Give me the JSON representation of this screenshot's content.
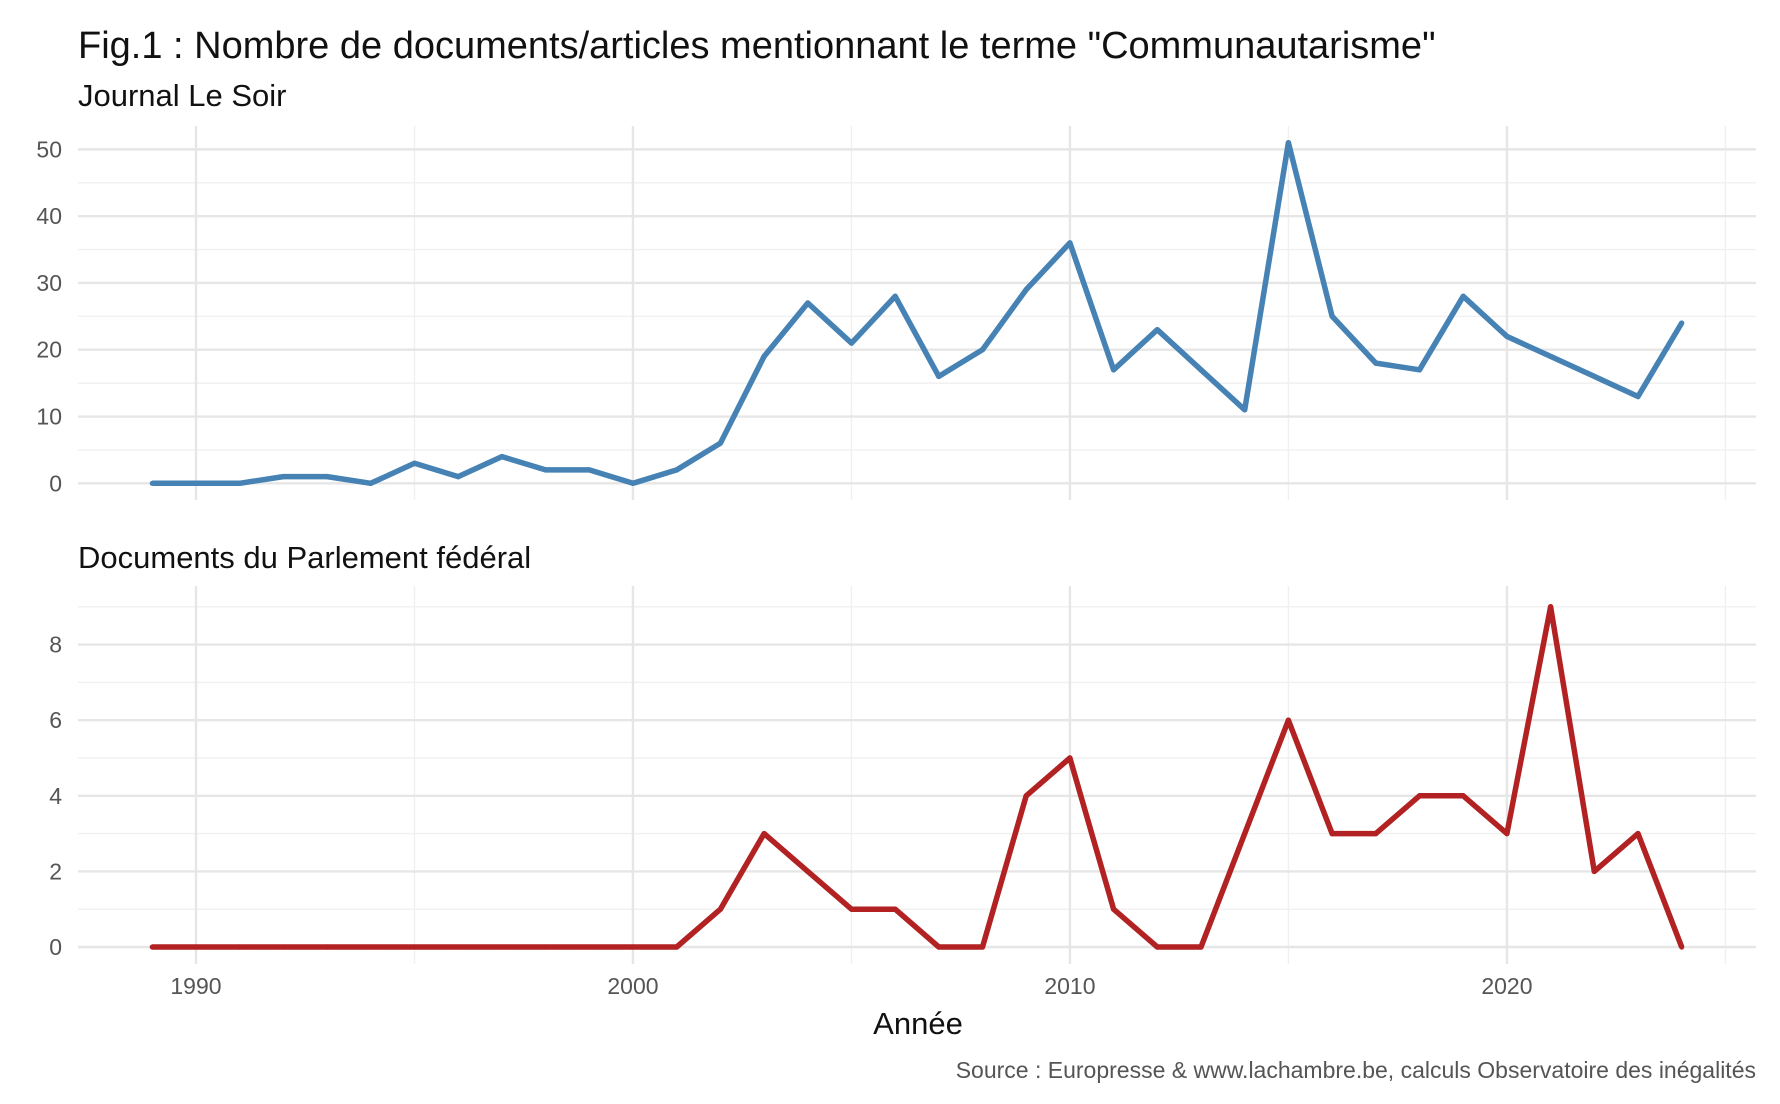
{
  "chart_data": {
    "type": "line",
    "title": "Fig.1 : Nombre de documents/articles mentionnant le terme \"Communautarisme\"",
    "xlabel": "Année",
    "caption": "Source : Europresse & www.lachambre.be, calculs Observatoire des inégalités",
    "x": [
      1989,
      1990,
      1991,
      1992,
      1993,
      1994,
      1995,
      1996,
      1997,
      1998,
      1999,
      2000,
      2001,
      2002,
      2003,
      2004,
      2005,
      2006,
      2007,
      2008,
      2009,
      2010,
      2011,
      2012,
      2013,
      2014,
      2015,
      2016,
      2017,
      2018,
      2019,
      2020,
      2021,
      2022,
      2023,
      2024
    ],
    "xlim": [
      1987.3,
      2025.7
    ],
    "xticks": [
      1990,
      2000,
      2010,
      2020
    ],
    "xtick_labels": [
      "1990",
      "2000",
      "2010",
      "2020"
    ],
    "grid": true,
    "panels": [
      {
        "title": "Journal Le Soir",
        "color": "#4682B4",
        "ylim": [
          -2.5,
          53.5
        ],
        "yticks": [
          0,
          10,
          20,
          30,
          40,
          50
        ],
        "ytick_labels": [
          "0",
          "10",
          "20",
          "30",
          "40",
          "50"
        ],
        "values": [
          0,
          0,
          0,
          1,
          1,
          0,
          3,
          1,
          4,
          2,
          2,
          0,
          2,
          6,
          19,
          27,
          21,
          28,
          16,
          20,
          29,
          36,
          17,
          23,
          17,
          11,
          51,
          25,
          18,
          17,
          28,
          22,
          19,
          16,
          13,
          24
        ]
      },
      {
        "title": "Documents du Parlement fédéral",
        "color": "#B22222",
        "ylim": [
          -0.45,
          9.55
        ],
        "yticks": [
          0,
          2,
          4,
          6,
          8
        ],
        "ytick_labels": [
          "0",
          "2",
          "4",
          "6",
          "8"
        ],
        "values": [
          0,
          0,
          0,
          0,
          0,
          0,
          0,
          0,
          0,
          0,
          0,
          0,
          0,
          1,
          3,
          2,
          1,
          1,
          0,
          0,
          4,
          5,
          1,
          0,
          0,
          3,
          6,
          3,
          3,
          4,
          4,
          3,
          9,
          2,
          3,
          0
        ]
      }
    ]
  }
}
